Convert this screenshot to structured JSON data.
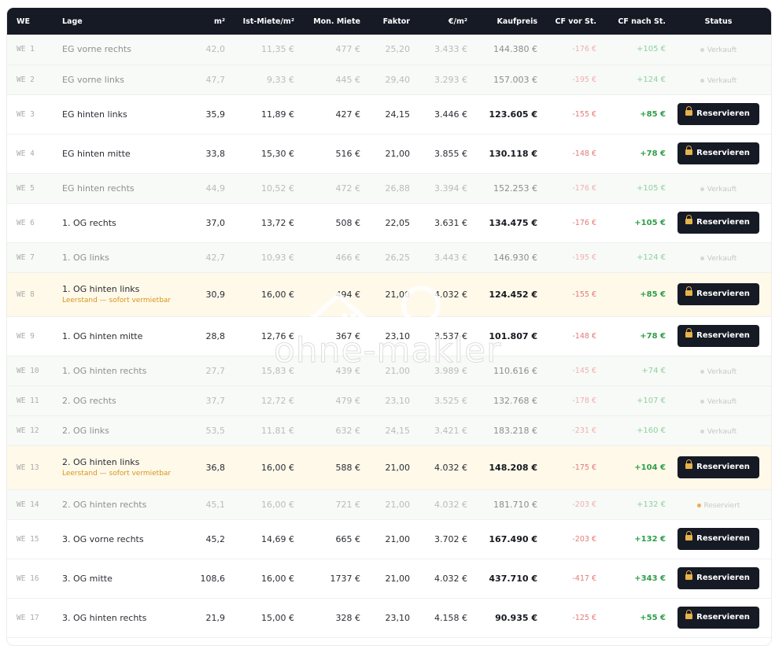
{
  "table": {
    "headers": {
      "we": "WE",
      "lage": "Lage",
      "m2": "m²",
      "ist_miete": "Ist-Miete/m²",
      "mon_miete": "Mon. Miete",
      "faktor": "Faktor",
      "eur_m2": "€/m²",
      "kaufpreis": "Kaufpreis",
      "cf_vor": "CF vor St.",
      "cf_nach": "CF nach St.",
      "status": "Status"
    },
    "rows": [
      {
        "we": "WE 1",
        "lage": "EG vorne rechts",
        "m2": "42,0",
        "ist": "11,35 €",
        "mon": "477 €",
        "faktor": "25,20",
        "eur": "3.433 €",
        "kauf": "144.380 €",
        "cfv": "-176 €",
        "cfn": "+105 €",
        "status": "Verkauft",
        "state": "sold"
      },
      {
        "we": "WE 2",
        "lage": "EG vorne links",
        "m2": "47,7",
        "ist": "9,33 €",
        "mon": "445 €",
        "faktor": "29,40",
        "eur": "3.293 €",
        "kauf": "157.003 €",
        "cfv": "-195 €",
        "cfn": "+124 €",
        "status": "Verkauft",
        "state": "sold"
      },
      {
        "we": "WE 3",
        "lage": "EG hinten links",
        "m2": "35,9",
        "ist": "11,89 €",
        "mon": "427 €",
        "faktor": "24,15",
        "eur": "3.446 €",
        "kauf": "123.605 €",
        "cfv": "-155 €",
        "cfn": "+85 €",
        "status": "Reservieren",
        "state": "avail"
      },
      {
        "we": "WE 4",
        "lage": "EG hinten mitte",
        "m2": "33,8",
        "ist": "15,30 €",
        "mon": "516 €",
        "faktor": "21,00",
        "eur": "3.855 €",
        "kauf": "130.118 €",
        "cfv": "-148 €",
        "cfn": "+78 €",
        "status": "Reservieren",
        "state": "avail"
      },
      {
        "we": "WE 5",
        "lage": "EG hinten rechts",
        "m2": "44,9",
        "ist": "10,52 €",
        "mon": "472 €",
        "faktor": "26,88",
        "eur": "3.394 €",
        "kauf": "152.253 €",
        "cfv": "-176 €",
        "cfn": "+105 €",
        "status": "Verkauft",
        "state": "sold"
      },
      {
        "we": "WE 6",
        "lage": "1. OG rechts",
        "m2": "37,0",
        "ist": "13,72 €",
        "mon": "508 €",
        "faktor": "22,05",
        "eur": "3.631 €",
        "kauf": "134.475 €",
        "cfv": "-176 €",
        "cfn": "+105 €",
        "status": "Reservieren",
        "state": "avail"
      },
      {
        "we": "WE 7",
        "lage": "1. OG links",
        "m2": "42,7",
        "ist": "10,93 €",
        "mon": "466 €",
        "faktor": "26,25",
        "eur": "3.443 €",
        "kauf": "146.930 €",
        "cfv": "-195 €",
        "cfn": "+124 €",
        "status": "Verkauft",
        "state": "sold"
      },
      {
        "we": "WE 8",
        "lage": "1. OG hinten links",
        "sub": "Leerstand — sofort vermietbar",
        "m2": "30,9",
        "ist": "16,00 €",
        "mon": "494 €",
        "faktor": "21,00",
        "eur": "4.032 €",
        "kauf": "124.452 €",
        "cfv": "-155 €",
        "cfn": "+85 €",
        "status": "Reservieren",
        "state": "vacant"
      },
      {
        "we": "WE 9",
        "lage": "1. OG hinten mitte",
        "m2": "28,8",
        "ist": "12,76 €",
        "mon": "367 €",
        "faktor": "23,10",
        "eur": "3.537 €",
        "kauf": "101.807 €",
        "cfv": "-148 €",
        "cfn": "+78 €",
        "status": "Reservieren",
        "state": "avail"
      },
      {
        "we": "WE 10",
        "lage": "1. OG hinten rechts",
        "m2": "27,7",
        "ist": "15,83 €",
        "mon": "439 €",
        "faktor": "21,00",
        "eur": "3.989 €",
        "kauf": "110.616 €",
        "cfv": "-145 €",
        "cfn": "+74 €",
        "status": "Verkauft",
        "state": "sold"
      },
      {
        "we": "WE 11",
        "lage": "2. OG rechts",
        "m2": "37,7",
        "ist": "12,72 €",
        "mon": "479 €",
        "faktor": "23,10",
        "eur": "3.525 €",
        "kauf": "132.768 €",
        "cfv": "-178 €",
        "cfn": "+107 €",
        "status": "Verkauft",
        "state": "sold"
      },
      {
        "we": "WE 12",
        "lage": "2. OG links",
        "m2": "53,5",
        "ist": "11,81 €",
        "mon": "632 €",
        "faktor": "24,15",
        "eur": "3.421 €",
        "kauf": "183.218 €",
        "cfv": "-231 €",
        "cfn": "+160 €",
        "status": "Verkauft",
        "state": "sold"
      },
      {
        "we": "WE 13",
        "lage": "2. OG hinten links",
        "sub": "Leerstand — sofort vermietbar",
        "m2": "36,8",
        "ist": "16,00 €",
        "mon": "588 €",
        "faktor": "21,00",
        "eur": "4.032 €",
        "kauf": "148.208 €",
        "cfv": "-175 €",
        "cfn": "+104 €",
        "status": "Reservieren",
        "state": "vacant"
      },
      {
        "we": "WE 14",
        "lage": "2. OG hinten rechts",
        "m2": "45,1",
        "ist": "16,00 €",
        "mon": "721 €",
        "faktor": "21,00",
        "eur": "4.032 €",
        "kauf": "181.710 €",
        "cfv": "-203 €",
        "cfn": "+132 €",
        "status": "Reserviert",
        "state": "reserved"
      },
      {
        "we": "WE 15",
        "lage": "3. OG vorne rechts",
        "m2": "45,2",
        "ist": "14,69 €",
        "mon": "665 €",
        "faktor": "21,00",
        "eur": "3.702 €",
        "kauf": "167.490 €",
        "cfv": "-203 €",
        "cfn": "+132 €",
        "status": "Reservieren",
        "state": "avail"
      },
      {
        "we": "WE 16",
        "lage": "3. OG mitte",
        "m2": "108,6",
        "ist": "16,00 €",
        "mon": "1737 €",
        "faktor": "21,00",
        "eur": "4.032 €",
        "kauf": "437.710 €",
        "cfv": "-417 €",
        "cfn": "+343 €",
        "status": "Reservieren",
        "state": "avail"
      },
      {
        "we": "WE 17",
        "lage": "3. OG hinten rechts",
        "m2": "21,9",
        "ist": "15,00 €",
        "mon": "328 €",
        "faktor": "23,10",
        "eur": "4.158 €",
        "kauf": "90.935 €",
        "cfv": "-125 €",
        "cfn": "+55 €",
        "status": "Reservieren",
        "state": "avail"
      }
    ]
  },
  "watermark": {
    "text": "ohne-makler"
  },
  "colors": {
    "header_bg": "#161a25",
    "vacant_bg": "#fff9ea",
    "sold_bg": "#f7faf7",
    "negative": "#e37a7a",
    "positive": "#2e9e4a",
    "vacant_note": "#d7951c",
    "reserved_dot": "#f4a94f"
  }
}
